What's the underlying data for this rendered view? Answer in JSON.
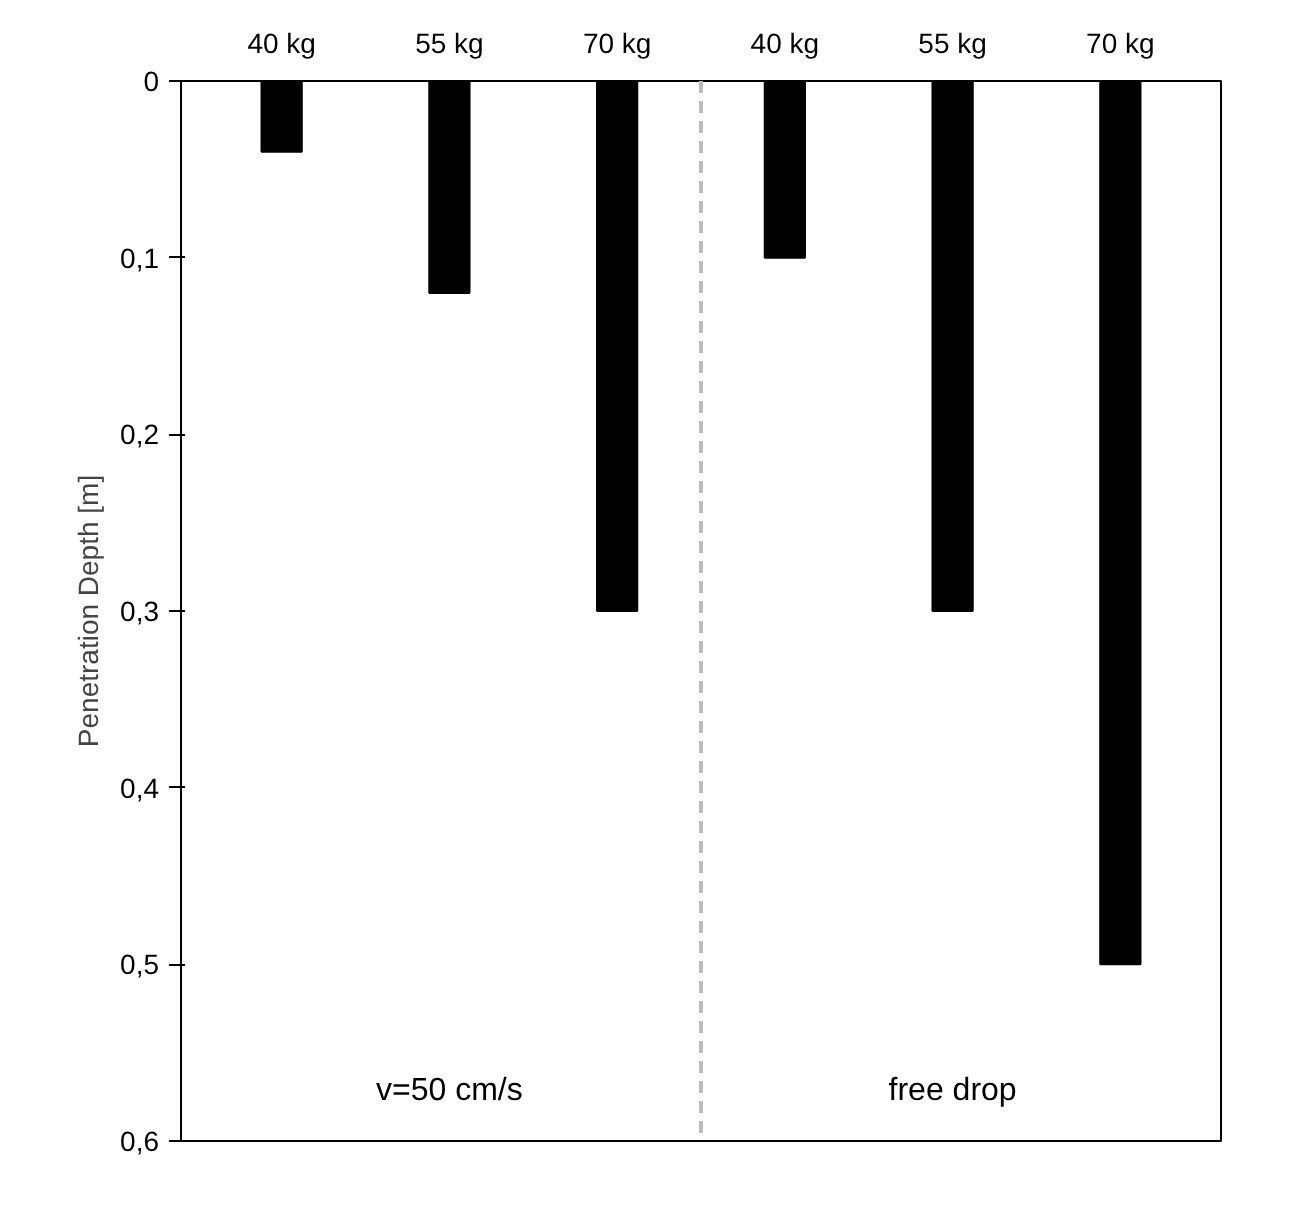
{
  "chart_data": {
    "type": "bar",
    "ylabel": "Penetration Depth [m]",
    "categories": [
      "40 kg",
      "55 kg",
      "70 kg",
      "40 kg",
      "55 kg",
      "70 kg"
    ],
    "values": [
      0.04,
      0.12,
      0.3,
      0.1,
      0.3,
      0.5
    ],
    "color": "#000000",
    "ylim": [
      0.6,
      0
    ],
    "yticks": [
      {
        "value": 0,
        "label": "0"
      },
      {
        "value": 0.1,
        "label": "0,1"
      },
      {
        "value": 0.2,
        "label": "0,2"
      },
      {
        "value": 0.3,
        "label": "0,3"
      },
      {
        "value": 0.4,
        "label": "0,4"
      },
      {
        "value": 0.5,
        "label": "0,5"
      },
      {
        "value": 0.6,
        "label": "0,6"
      }
    ],
    "annotations": [
      "v=50 cm/s",
      "free drop"
    ],
    "grid": false
  }
}
